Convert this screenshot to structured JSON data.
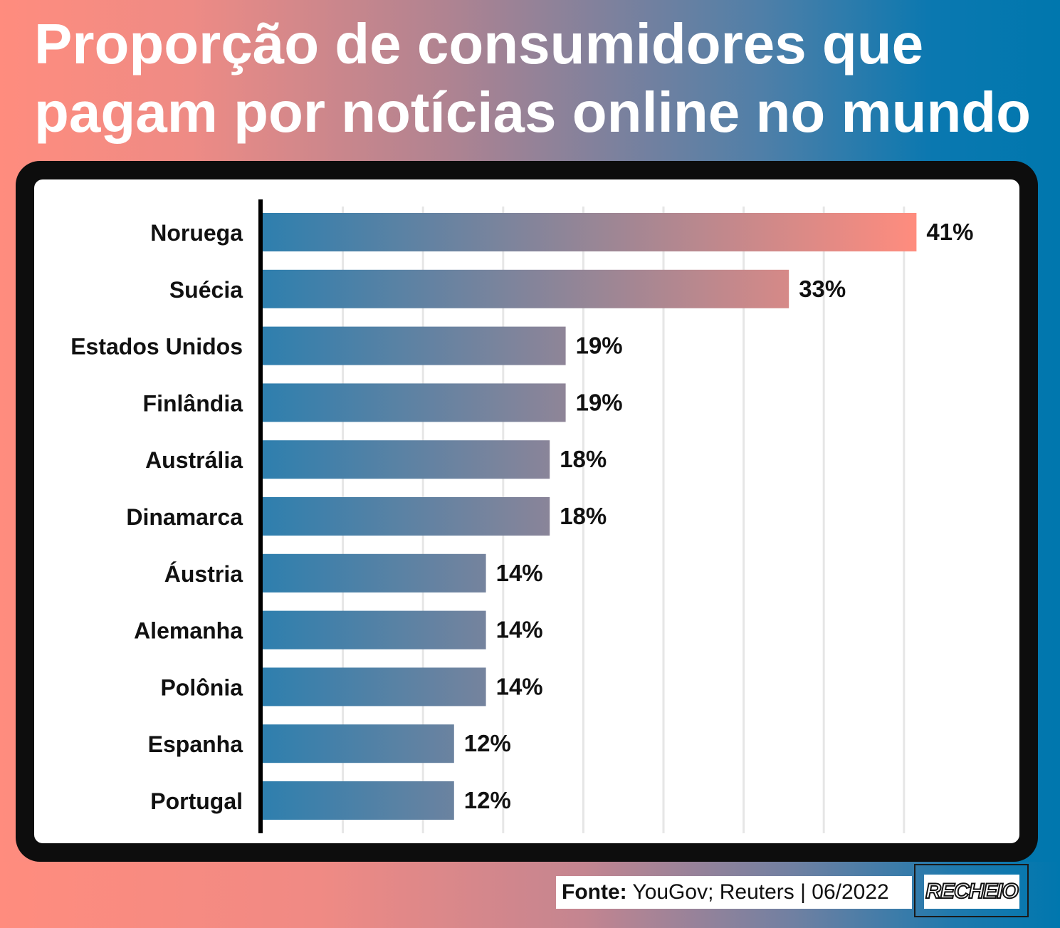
{
  "title": "Proporção de consumidores que pagam por notícias online no mundo",
  "source": {
    "prefix": "Fonte:",
    "text": " YouGov; Reuters | 06/2022"
  },
  "logo": "RECHEIO",
  "colors": {
    "bar_left": "#2e7fae",
    "bar_right": "#ff8c7e",
    "frame": "#0d0d0d",
    "grid": "#e6e6e6",
    "axis": "#000000"
  },
  "chart_data": {
    "type": "bar",
    "orientation": "horizontal",
    "categories": [
      "Noruega",
      "Suécia",
      "Estados Unidos",
      "Finlândia",
      "Austrália",
      "Dinamarca",
      "Áustria",
      "Alemanha",
      "Polônia",
      "Espanha",
      "Portugal"
    ],
    "values": [
      41,
      33,
      19,
      19,
      18,
      18,
      14,
      14,
      14,
      12,
      12
    ],
    "value_labels": [
      "41%",
      "33%",
      "19%",
      "19%",
      "18%",
      "18%",
      "14%",
      "14%",
      "14%",
      "12%",
      "12%"
    ],
    "unit": "%",
    "xlim": [
      0,
      45
    ],
    "grid": true,
    "legend": "none"
  }
}
